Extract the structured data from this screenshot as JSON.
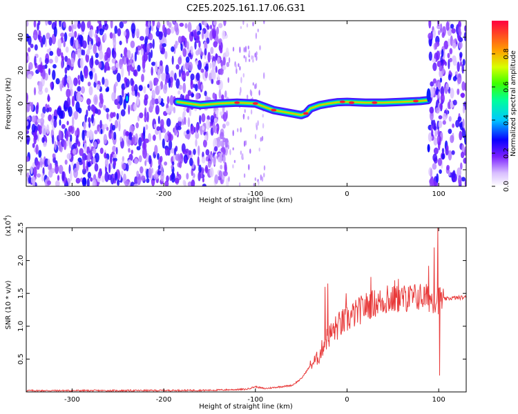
{
  "title": "C2E5.2025.161.17.06.G31",
  "chart_data": [
    {
      "type": "heatmap",
      "xlabel": "Height of straight line (km)",
      "ylabel": "Frequency (Hz)",
      "xlim": [
        -350,
        130
      ],
      "ylim": [
        -50,
        50
      ],
      "x_ticks": [
        "-300",
        "-200",
        "-100",
        "0",
        "100"
      ],
      "y_ticks": [
        "40",
        "20",
        "0",
        "-20",
        "-40"
      ],
      "colorbar": {
        "label": "Normalized spectral amplitude",
        "range": [
          0,
          1
        ],
        "ticks": [
          "0.0",
          "0.2",
          "0.4",
          "0.6",
          "0.8"
        ]
      },
      "ridge": [
        [
          -185,
          1
        ],
        [
          -160,
          -1
        ],
        [
          -140,
          0
        ],
        [
          -120,
          0.5
        ],
        [
          -100,
          0
        ],
        [
          -90,
          -2
        ],
        [
          -80,
          -4
        ],
        [
          -70,
          -5
        ],
        [
          -60,
          -6
        ],
        [
          -50,
          -7
        ],
        [
          -45,
          -6
        ],
        [
          -40,
          -3
        ],
        [
          -30,
          -1
        ],
        [
          -20,
          0
        ],
        [
          -10,
          0.8
        ],
        [
          0,
          1
        ],
        [
          20,
          0.5
        ],
        [
          40,
          0.5
        ],
        [
          60,
          1
        ],
        [
          80,
          1.5
        ],
        [
          88,
          2
        ]
      ],
      "ridge_peaks": [
        [
          -120,
          0.5
        ],
        [
          -100,
          0
        ],
        [
          -80,
          -4
        ],
        [
          -45,
          -6
        ],
        [
          -5,
          1
        ],
        [
          5,
          0.5
        ],
        [
          30,
          0.5
        ],
        [
          75,
          1.5
        ]
      ],
      "noise_regions": [
        [
          -350,
          -130
        ],
        [
          90,
          130
        ]
      ]
    },
    {
      "type": "line",
      "xlabel": "Height of straight line (km)",
      "ylabel": "SNR (10 * v/v)",
      "y_multiplier": "(x10",
      "y_exponent": "4",
      "xlim": [
        -350,
        130
      ],
      "ylim": [
        0,
        2.5
      ],
      "x_ticks": [
        "-300",
        "-200",
        "-100",
        "0",
        "100"
      ],
      "y_ticks": [
        "0.5",
        "1.0",
        "1.5",
        "2.0",
        "2.5"
      ],
      "color": "#e83a3a",
      "series_points": [
        [
          -350,
          0.02
        ],
        [
          -250,
          0.02
        ],
        [
          -150,
          0.025
        ],
        [
          -110,
          0.04
        ],
        [
          -100,
          0.08
        ],
        [
          -90,
          0.05
        ],
        [
          -60,
          0.1
        ],
        [
          -50,
          0.2
        ],
        [
          -40,
          0.4
        ],
        [
          -30,
          0.55
        ],
        [
          -25,
          0.75
        ],
        [
          -20,
          0.85
        ],
        [
          -10,
          1.0
        ],
        [
          0,
          1.1
        ],
        [
          10,
          1.2
        ],
        [
          20,
          1.3
        ],
        [
          30,
          1.35
        ],
        [
          40,
          1.38
        ],
        [
          60,
          1.42
        ],
        [
          80,
          1.45
        ],
        [
          100,
          1.4
        ],
        [
          115,
          1.43
        ],
        [
          130,
          1.44
        ]
      ],
      "spikes": [
        [
          -24,
          1.6
        ],
        [
          -21,
          1.65
        ],
        [
          -14,
          1.0
        ],
        [
          -1,
          1.5
        ],
        [
          26,
          1.75
        ],
        [
          44,
          1.62
        ],
        [
          52,
          1.7
        ],
        [
          56,
          1.72
        ],
        [
          67,
          1.6
        ],
        [
          72,
          1.42
        ],
        [
          89,
          1.92
        ],
        [
          95,
          2.2
        ],
        [
          99,
          2.5
        ],
        [
          101,
          0.25
        ]
      ]
    }
  ]
}
